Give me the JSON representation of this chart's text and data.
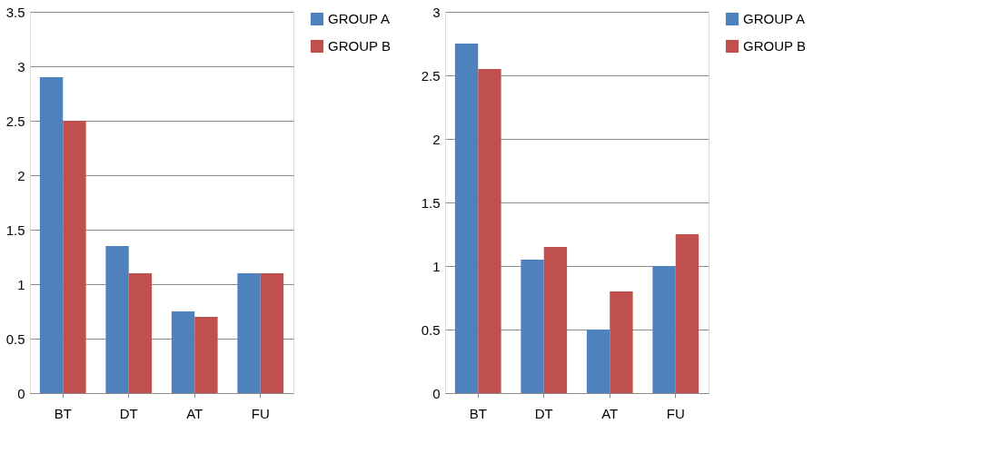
{
  "chart_data": [
    {
      "type": "bar",
      "categories": [
        "BT",
        "DT",
        "AT",
        "FU"
      ],
      "series": [
        {
          "name": "GROUP A",
          "color": "#4f81bd",
          "values": [
            2.9,
            1.35,
            0.75,
            1.1
          ]
        },
        {
          "name": "GROUP B",
          "color": "#c0504d",
          "values": [
            2.5,
            1.1,
            0.7,
            1.1
          ]
        }
      ],
      "ylim": [
        0,
        3.5
      ],
      "yticks": [
        0,
        0.5,
        1,
        1.5,
        2,
        2.5,
        3,
        3.5
      ],
      "grid": "y",
      "legend": "right"
    },
    {
      "type": "bar",
      "categories": [
        "BT",
        "DT",
        "AT",
        "FU"
      ],
      "series": [
        {
          "name": "GROUP A",
          "color": "#4f81bd",
          "values": [
            2.75,
            1.05,
            0.5,
            1.0
          ]
        },
        {
          "name": "GROUP B",
          "color": "#c0504d",
          "values": [
            2.55,
            1.15,
            0.8,
            1.25
          ]
        }
      ],
      "ylim": [
        0,
        3
      ],
      "yticks": [
        0,
        0.5,
        1,
        1.5,
        2,
        2.5,
        3
      ],
      "grid": "y",
      "legend": "right"
    }
  ]
}
